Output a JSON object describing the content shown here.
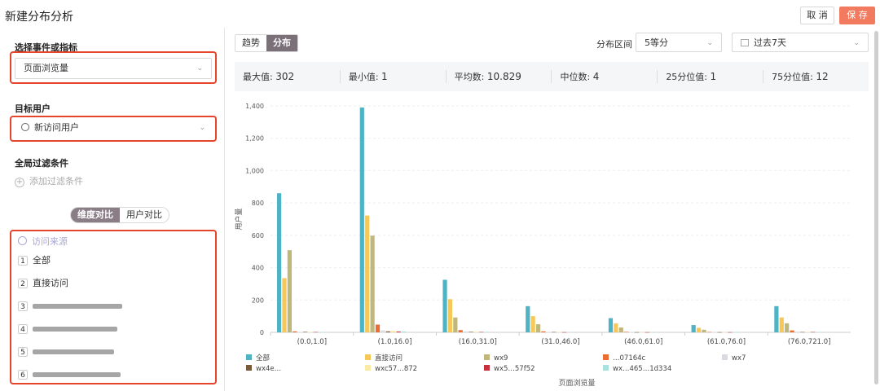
{
  "header": {
    "title": "新建分布分析",
    "cancel_label": "取 消",
    "save_label": "保 存"
  },
  "left_panel": {
    "event_section_title": "选择事件或指标",
    "event_value": "页面浏览量",
    "target_user_title": "目标用户",
    "target_user_value": "新访问用户",
    "filter_title": "全局过滤条件",
    "add_filter_label": "添加过滤条件",
    "toggle": {
      "dimension": "维度对比",
      "user": "用户对比"
    },
    "dimension_header": "访问来源",
    "dimension_items": [
      {
        "num": "1",
        "label": "全部"
      },
      {
        "num": "2",
        "label": "直接访问"
      },
      {
        "num": "3",
        "label": ""
      },
      {
        "num": "4",
        "label": ""
      },
      {
        "num": "5",
        "label": ""
      },
      {
        "num": "6",
        "label": ""
      }
    ]
  },
  "toolbar": {
    "tab_trend": "趋势",
    "tab_distribution": "分布",
    "interval_label": "分布区间",
    "interval_value": "5等分",
    "date_value": "过去7天"
  },
  "stats": {
    "max_label": "最大值:",
    "max_value": "302",
    "min_label": "最小值:",
    "min_value": "1",
    "avg_label": "平均数:",
    "avg_value": "10.829",
    "median_label": "中位数:",
    "median_value": "4",
    "p25_label": "25分位值:",
    "p25_value": "1",
    "p75_label": "75分位值:",
    "p75_value": "12"
  },
  "chart_data": {
    "type": "bar",
    "ylabel": "用户量",
    "xlabel": "页面浏览量",
    "ylim": [
      0,
      1400
    ],
    "yticks": [
      "0",
      "200",
      "400",
      "600",
      "800",
      "1,000",
      "1,200",
      "1,400"
    ],
    "grid": true,
    "legend_position": "bottom",
    "categories": [
      "(0.0,1.0]",
      "(1.0,16.0]",
      "(16.0,31.0]",
      "(31.0,46.0]",
      "(46.0,61.0]",
      "(61.0,76.0]",
      "(76.0,721.0]"
    ],
    "series": [
      {
        "name": "全部",
        "color": "#4fb3c6",
        "values": [
          860,
          1390,
          325,
          162,
          88,
          45,
          162
        ]
      },
      {
        "name": "直接访问",
        "color": "#f6c859",
        "values": [
          335,
          722,
          205,
          100,
          55,
          28,
          92
        ]
      },
      {
        "name": "wx9",
        "color": "#bfb77c",
        "values": [
          508,
          598,
          92,
          50,
          30,
          16,
          56
        ]
      },
      {
        "name": "…07164c",
        "color": "#ea6d34",
        "values": [
          6,
          48,
          14,
          6,
          3,
          2,
          12
        ]
      },
      {
        "name": "wx7",
        "color": "#d9dbe0",
        "values": [
          3,
          12,
          6,
          3,
          2,
          1,
          4
        ]
      },
      {
        "name": "wx4e…",
        "color": "#7b5a3b",
        "values": [
          3,
          6,
          3,
          2,
          1,
          1,
          2
        ]
      },
      {
        "name": "wxc57…872",
        "color": "#fbe9a6",
        "values": [
          2,
          10,
          4,
          2,
          1,
          1,
          3
        ]
      },
      {
        "name": "wx5…57f52",
        "color": "#c8303e",
        "values": [
          2,
          5,
          2,
          1,
          1,
          1,
          2
        ]
      },
      {
        "name": "wx…465…1d334",
        "color": "#a7e3dc",
        "values": [
          2,
          6,
          3,
          2,
          1,
          1,
          2
        ]
      }
    ]
  }
}
